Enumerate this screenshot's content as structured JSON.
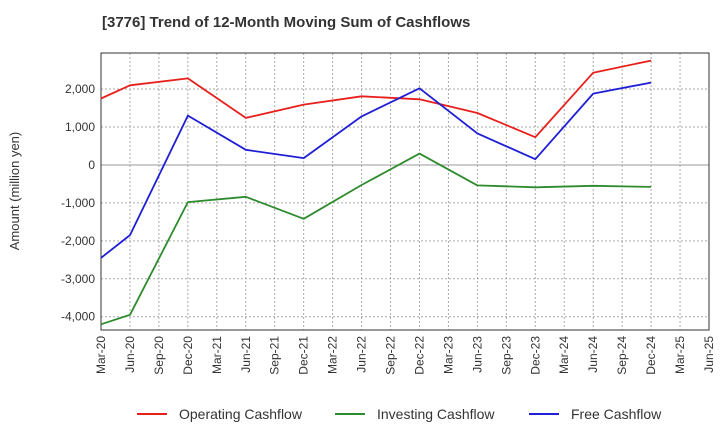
{
  "title": "[3776]  Trend of 12-Month Moving Sum of Cashflows",
  "chart_data": {
    "type": "line",
    "title": "[3776]  Trend of 12-Month Moving Sum of Cashflows",
    "xlabel": "",
    "ylabel": "Amount (million yen)",
    "categories": [
      "Mar-20",
      "Jun-20",
      "Sep-20",
      "Dec-20",
      "Mar-21",
      "Jun-21",
      "Sep-21",
      "Dec-21",
      "Mar-22",
      "Jun-22",
      "Sep-22",
      "Dec-22",
      "Mar-23",
      "Jun-23",
      "Sep-23",
      "Dec-23",
      "Mar-24",
      "Jun-24",
      "Sep-24",
      "Dec-24",
      "Mar-25",
      "Jun-25"
    ],
    "ylim": [
      -4350,
      2950
    ],
    "yticks": [
      2000,
      1000,
      0,
      -1000,
      -2000,
      -3000,
      -4000
    ],
    "ytick_labels": [
      "2,000",
      "1,000",
      "0",
      "-1,000",
      "-2,000",
      "-3,000",
      "-4,000"
    ],
    "grid": true,
    "legend_position": "bottom",
    "series": [
      {
        "name": "Operating Cashflow",
        "color": "#e8201d",
        "values": [
          1750,
          2100,
          null,
          2280,
          null,
          1240,
          null,
          1590,
          null,
          1810,
          null,
          1730,
          null,
          1370,
          null,
          730,
          null,
          2430,
          null,
          2750,
          null,
          null
        ]
      },
      {
        "name": "Investing Cashflow",
        "color": "#2e8b2e",
        "values": [
          -4200,
          -3950,
          null,
          -980,
          null,
          -840,
          null,
          -1420,
          null,
          -530,
          null,
          300,
          null,
          -540,
          null,
          -590,
          null,
          -550,
          null,
          -580,
          null,
          null
        ]
      },
      {
        "name": "Free Cashflow",
        "color": "#1f1fd6",
        "values": [
          -2450,
          -1850,
          null,
          1300,
          null,
          400,
          null,
          180,
          null,
          1280,
          null,
          2020,
          null,
          830,
          null,
          150,
          null,
          1880,
          null,
          2170,
          null,
          null
        ]
      }
    ]
  }
}
